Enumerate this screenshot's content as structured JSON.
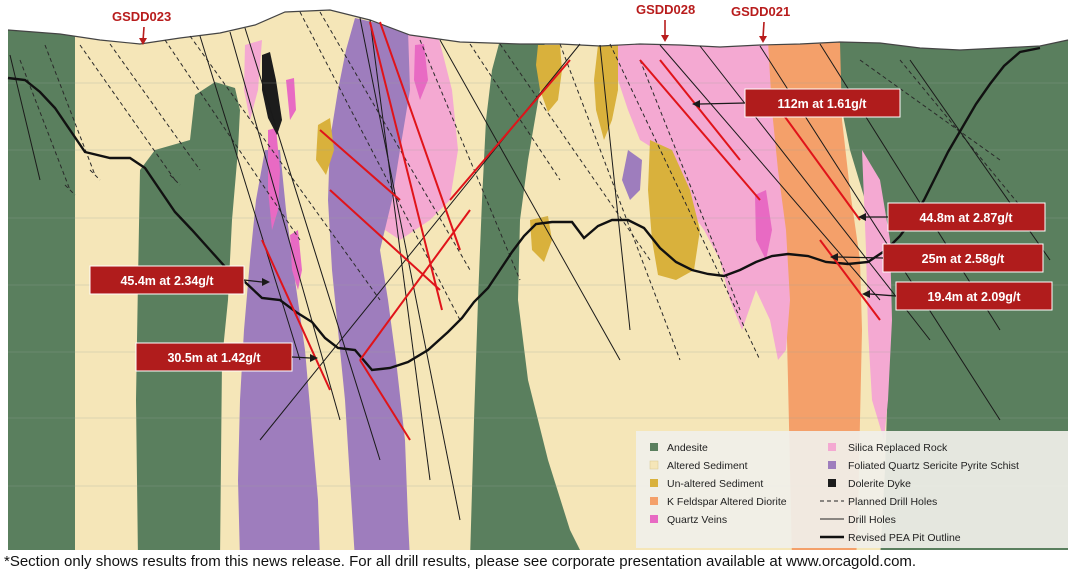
{
  "drill_hole_labels": [
    {
      "name": "GSDD023"
    },
    {
      "name": "GSDD028"
    },
    {
      "name": "GSDD021"
    }
  ],
  "intercepts": [
    {
      "text": "112m at 1.61g/t"
    },
    {
      "text": "44.8m at 2.87g/t"
    },
    {
      "text": "25m at 2.58g/t"
    },
    {
      "text": "19.4m at 2.09g/t"
    },
    {
      "text": "45.4m at 2.34g/t"
    },
    {
      "text": "30.5m at 1.42g/t"
    }
  ],
  "legend": {
    "items": [
      {
        "label": "Andesite",
        "color": "#5a7f5e",
        "symbol": "swatch"
      },
      {
        "label": "Altered Sediment",
        "color": "#f5e6b8",
        "symbol": "swatch"
      },
      {
        "label": "Un-altered Sediment",
        "color": "#d9b13c",
        "symbol": "swatch"
      },
      {
        "label": "K Feldspar Altered Diorite",
        "color": "#f4a06a",
        "symbol": "swatch"
      },
      {
        "label": "Quartz Veins",
        "color": "#e86ac3",
        "symbol": "swatch"
      },
      {
        "label": "Silica Replaced Rock",
        "color": "#f4a9d2",
        "symbol": "swatch"
      },
      {
        "label": "Foliated Quartz Sericite Pyrite Schist",
        "color": "#9e7dbd",
        "symbol": "swatch"
      },
      {
        "label": "Dolerite Dyke",
        "color": "#1c1c1c",
        "symbol": "swatch"
      },
      {
        "label": "Planned Drill Holes",
        "symbol": "dashed-line"
      },
      {
        "label": "Drill Holes",
        "symbol": "thin-line"
      },
      {
        "label": "Revised PEA Pit Outline",
        "symbol": "thick-line"
      }
    ]
  },
  "footnote": "*Section only shows results from this news release. For all drill results, please see corporate presentation available at www.orcagold.com.",
  "colors": {
    "andesite": "#5a7f5e",
    "altered_sediment": "#f5e6b8",
    "unaltered_sediment": "#d9b13c",
    "k_feldspar_diorite": "#f4a06a",
    "quartz_veins": "#e86ac3",
    "silica_replaced": "#f4a9d2",
    "schist": "#9e7dbd",
    "dolerite": "#1c1c1c",
    "intercept_box": "#b01c1c",
    "mineralised_trace": "#e0141a"
  }
}
